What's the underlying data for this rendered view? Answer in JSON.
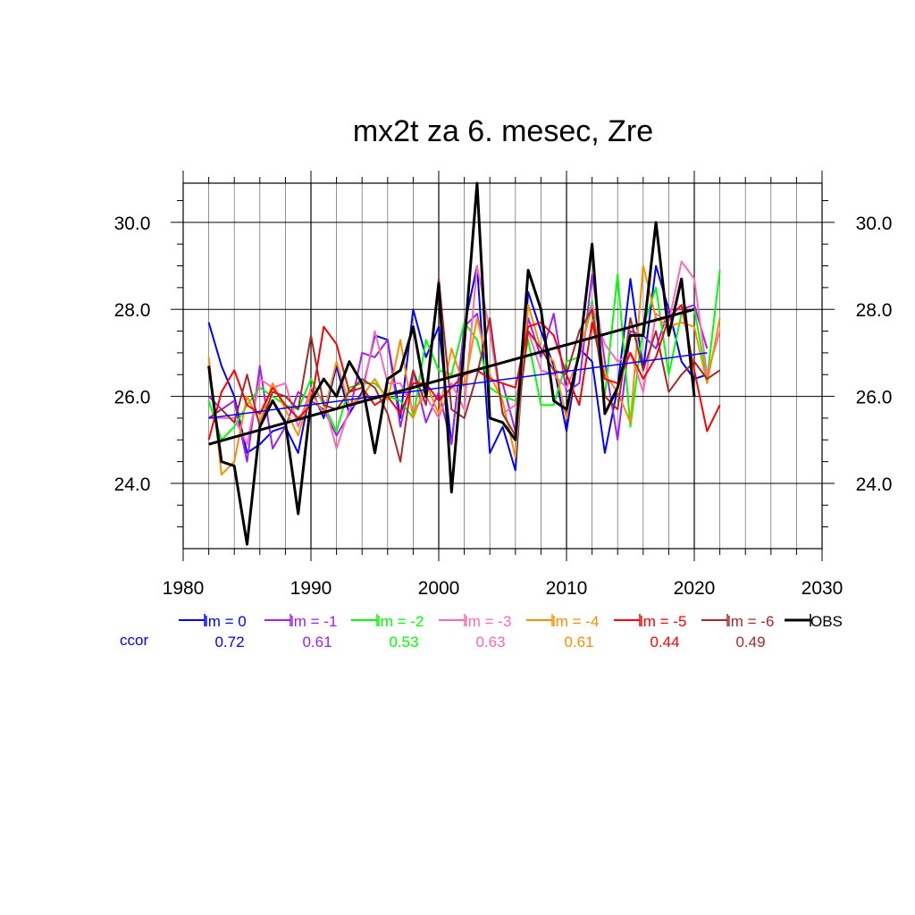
{
  "chart_data": {
    "type": "line",
    "title": "mx2t za 6. mesec, Zre",
    "xlim": [
      1980,
      2030
    ],
    "ylim": [
      22.5,
      30.9
    ],
    "x_ticks": [
      "1980",
      "1990",
      "2000",
      "2010",
      "2020",
      "2030"
    ],
    "y_ticks": [
      "24.0",
      "26.0",
      "28.0",
      "30.0"
    ],
    "y_tick_values": [
      24,
      26,
      28,
      30
    ],
    "grid": true,
    "legend_position": "bottom",
    "ccor_label": "ccor",
    "series": [
      {
        "name": "lm = 0",
        "color": "#0000ff",
        "ccor": "0.72",
        "x_start": 1982,
        "values": [
          27.7,
          26.7,
          26.0,
          24.7,
          24.9,
          25.2,
          25.3,
          24.7,
          26.2,
          25.5,
          26.7,
          25.6,
          26.1,
          27.4,
          27.3,
          25.5,
          28.0,
          26.9,
          27.6,
          24.9,
          27.6,
          29.0,
          24.7,
          25.3,
          24.3,
          28.4,
          27.5,
          26.7,
          25.2,
          27.1,
          26.8,
          24.7,
          26.2,
          28.7,
          26.6,
          29.0,
          28.0,
          26.8,
          26.4,
          26.5
        ],
        "trend": [
          25.5,
          27.0
        ]
      },
      {
        "name": "lm = -1",
        "color": "#a020f0",
        "ccor": "0.61",
        "x_start": 1982,
        "values": [
          26.0,
          25.7,
          25.9,
          24.5,
          26.7,
          24.8,
          25.3,
          26.1,
          25.9,
          25.7,
          25.1,
          25.6,
          27.0,
          26.9,
          27.3,
          25.3,
          26.6,
          25.4,
          26.1,
          24.9,
          27.6,
          27.9,
          26.4,
          26.3,
          25.2,
          27.8,
          26.9,
          27.9,
          26.1,
          26.3,
          28.8,
          26.8,
          25.0,
          27.5,
          27.4,
          27.1,
          28.0,
          28.0,
          28.1,
          27.1
        ]
      },
      {
        "name": "lm = -2",
        "color": "#00ff00",
        "ccor": "0.53",
        "x_start": 1982,
        "values": [
          25.9,
          25.0,
          25.3,
          25.8,
          26.2,
          26.0,
          25.8,
          25.7,
          26.4,
          25.8,
          25.2,
          26.2,
          26.3,
          26.3,
          26.0,
          25.9,
          25.5,
          27.3,
          26.6,
          26.5,
          27.7,
          27.3,
          26.2,
          26.0,
          25.9,
          27.3,
          25.8,
          25.8,
          26.8,
          26.9,
          28.2,
          26.0,
          28.8,
          25.3,
          27.6,
          28.5,
          26.5,
          27.9,
          28.0,
          26.4,
          28.9
        ]
      },
      {
        "name": "lm = -3",
        "color": "#ff69b4",
        "ccor": "0.63",
        "x_start": 1982,
        "values": [
          25.5,
          25.5,
          25.5,
          24.9,
          26.4,
          26.2,
          26.3,
          25.3,
          26.2,
          25.9,
          24.8,
          25.7,
          26.0,
          27.5,
          26.3,
          26.3,
          25.7,
          26.0,
          25.5,
          26.3,
          25.7,
          29.0,
          27.5,
          25.6,
          25.8,
          27.5,
          26.6,
          26.5,
          26.2,
          26.9,
          28.1,
          27.2,
          26.8,
          27.0,
          26.1,
          27.9,
          27.7,
          29.1,
          28.7,
          26.5,
          27.5
        ]
      },
      {
        "name": "lm = -4",
        "color": "#ff8c00",
        "ccor": "0.61",
        "x_start": 1982,
        "values": [
          26.9,
          24.2,
          24.5,
          26.0,
          25.4,
          26.3,
          25.7,
          25.1,
          26.1,
          25.6,
          26.8,
          25.8,
          26.0,
          26.4,
          25.9,
          27.3,
          25.5,
          26.3,
          25.6,
          27.1,
          26.2,
          27.8,
          26.5,
          25.9,
          24.6,
          28.1,
          27.1,
          26.8,
          25.5,
          27.1,
          28.0,
          26.5,
          26.1,
          25.4,
          29.0,
          27.8,
          27.6,
          27.7,
          27.6,
          26.3,
          27.8
        ]
      },
      {
        "name": "lm = -5",
        "color": "#ff0000",
        "ccor": "0.44",
        "x_start": 1982,
        "values": [
          25.0,
          26.1,
          26.6,
          25.8,
          25.6,
          26.2,
          25.8,
          25.5,
          25.8,
          27.6,
          27.2,
          26.1,
          26.2,
          25.8,
          26.0,
          25.6,
          26.3,
          26.3,
          25.9,
          26.2,
          26.5,
          26.6,
          26.4,
          26.3,
          26.2,
          27.6,
          27.7,
          27.4,
          26.5,
          25.8,
          27.7,
          26.4,
          26.3,
          27.0,
          26.4,
          26.9,
          27.8,
          28.1,
          26.6,
          25.2,
          25.8
        ]
      },
      {
        "name": "lm = -6",
        "color": "#a52a2a",
        "ccor": "0.49",
        "x_start": 1982,
        "values": [
          25.5,
          25.7,
          25.4,
          26.5,
          25.3,
          26.1,
          26.0,
          25.7,
          27.4,
          25.8,
          25.7,
          26.1,
          26.4,
          26.2,
          25.6,
          24.5,
          26.6,
          25.8,
          28.7,
          25.7,
          25.5,
          26.5,
          27.8,
          25.6,
          25.1,
          27.5,
          27.1,
          26.6,
          26.5,
          27.5,
          28.0,
          26.0,
          25.7,
          27.8,
          26.6,
          27.5,
          26.1,
          26.5,
          26.8,
          26.4,
          26.6
        ]
      },
      {
        "name": "OBS",
        "color": "#000000",
        "ccor": "",
        "x_start": 1982,
        "values": [
          26.7,
          24.5,
          24.4,
          22.6,
          25.3,
          25.9,
          25.4,
          23.3,
          25.9,
          26.4,
          26.0,
          26.8,
          26.3,
          24.7,
          26.4,
          26.6,
          27.6,
          26.0,
          28.6,
          23.8,
          27.2,
          30.9,
          25.5,
          25.4,
          25.0,
          28.9,
          28.0,
          25.9,
          25.7,
          27.0,
          29.5,
          25.6,
          26.2,
          27.4,
          27.4,
          30.0,
          27.4,
          28.7,
          26.0
        ],
        "trend": [
          24.9,
          28.0
        ]
      }
    ]
  }
}
